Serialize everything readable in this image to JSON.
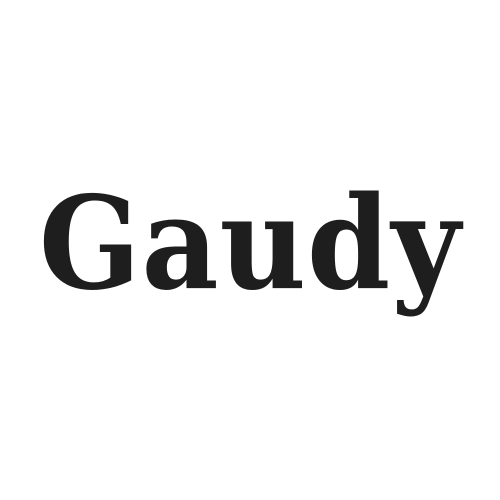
{
  "wordmark": {
    "text": "Gaudy",
    "color": "#1e1e1e"
  },
  "background_color": "#ffffff"
}
